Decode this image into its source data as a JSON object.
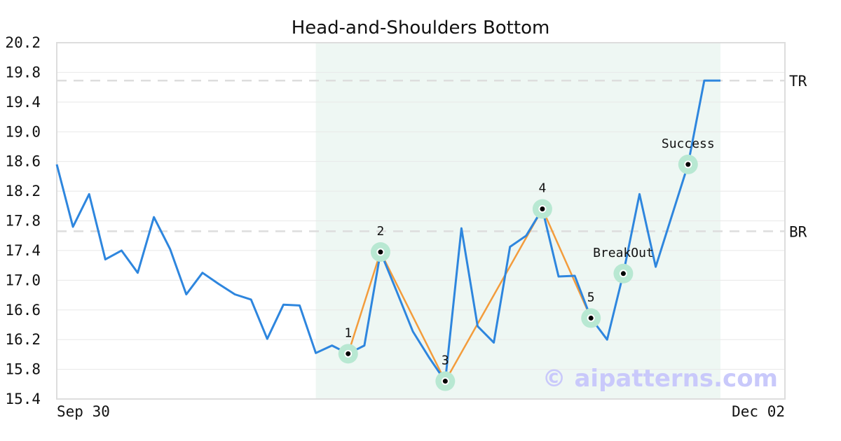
{
  "chart_data": {
    "type": "line",
    "title": "Head-and-Shoulders Bottom",
    "xlabel": "",
    "ylabel": "",
    "x_tick_labels": [
      "Sep 30",
      "Dec 02"
    ],
    "ylim": [
      15.4,
      20.2
    ],
    "y_ticks": [
      "15.4",
      "15.8",
      "16.2",
      "16.6",
      "17.0",
      "17.4",
      "17.8",
      "18.2",
      "18.6",
      "19.0",
      "19.4",
      "19.8",
      "20.2"
    ],
    "grid": "horizontal",
    "highlight_region_index_range": [
      16,
      41
    ],
    "colors": {
      "price": "#2e86de",
      "pattern": "#f39c3c",
      "marker_halo": "#b8e8d2",
      "region": "#eef7f3",
      "hline": "#dddddd"
    },
    "series": [
      {
        "values": [
          18.56,
          17.72,
          18.16,
          17.28,
          17.4,
          17.1,
          17.85,
          17.42,
          16.81,
          17.1,
          16.95,
          16.81,
          16.74,
          16.21,
          16.67,
          16.66,
          16.02,
          16.12,
          16.01,
          16.12,
          17.38,
          16.85,
          16.31,
          15.96,
          15.64,
          17.7,
          16.38,
          16.16,
          17.45,
          17.6,
          17.96,
          17.05,
          17.06,
          16.49,
          16.2,
          17.09,
          18.16,
          17.18,
          17.87,
          18.56,
          19.69,
          19.69
        ]
      }
    ],
    "pattern_points": [
      {
        "index": 18,
        "value": 16.01,
        "label": "1"
      },
      {
        "index": 20,
        "value": 17.38,
        "label": "2"
      },
      {
        "index": 24,
        "value": 15.64,
        "label": "3"
      },
      {
        "index": 30,
        "value": 17.96,
        "label": "4"
      },
      {
        "index": 33,
        "value": 16.49,
        "label": "5"
      }
    ],
    "annotations": [
      {
        "index": 35,
        "value": 17.09,
        "label": "BreakOut"
      },
      {
        "index": 39,
        "value": 18.56,
        "label": "Success"
      }
    ],
    "horizontal_lines": [
      {
        "value": 19.69,
        "label": "TR"
      },
      {
        "value": 17.66,
        "label": "BR"
      }
    ],
    "watermark": "© aipatterns.com"
  }
}
